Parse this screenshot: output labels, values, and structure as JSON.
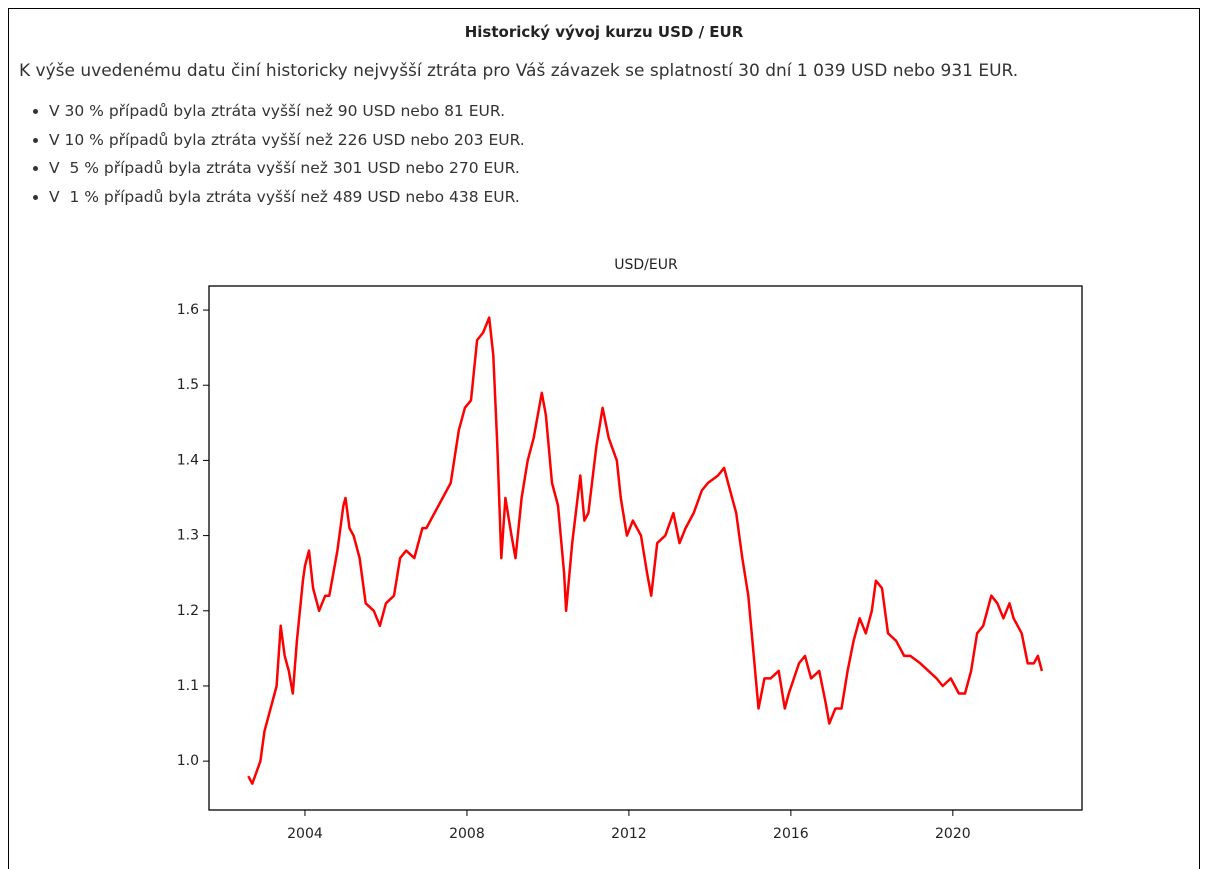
{
  "header": {
    "title": "Historický vývoj kurzu USD / EUR"
  },
  "intro": "K výše uvedenému datu činí historicky nejvyšší ztráta pro Váš závazek se splatností 30 dní 1 039 USD nebo 931 EUR.",
  "bullets": [
    "V 30 % případů byla ztráta vyšší než 90 USD nebo 81 EUR.",
    "V 10 % případů byla ztráta vyšší než 226 USD nebo 203 EUR.",
    "V  5 % případů byla ztráta vyšší než 301 USD nebo 270 EUR.",
    "V  1 % případů byla ztráta vyšší než 489 USD nebo 438 EUR."
  ],
  "chart_data": {
    "type": "line",
    "title": "USD/EUR",
    "color": "#ff0000",
    "x": [
      2002.6,
      2002.7,
      2002.9,
      2003.0,
      2003.2,
      2003.3,
      2003.4,
      2003.5,
      2003.6,
      2003.7,
      2003.8,
      2003.95,
      2004.0,
      2004.1,
      2004.2,
      2004.35,
      2004.5,
      2004.6,
      2004.8,
      2004.95,
      2005.0,
      2005.1,
      2005.2,
      2005.35,
      2005.5,
      2005.7,
      2005.85,
      2006.0,
      2006.2,
      2006.35,
      2006.5,
      2006.7,
      2006.9,
      2007.0,
      2007.2,
      2007.4,
      2007.6,
      2007.8,
      2007.95,
      2008.1,
      2008.25,
      2008.4,
      2008.55,
      2008.65,
      2008.75,
      2008.85,
      2008.95,
      2009.1,
      2009.2,
      2009.35,
      2009.5,
      2009.65,
      2009.85,
      2009.95,
      2010.1,
      2010.25,
      2010.4,
      2010.45,
      2010.6,
      2010.8,
      2010.9,
      2011.0,
      2011.2,
      2011.35,
      2011.5,
      2011.7,
      2011.8,
      2011.95,
      2012.1,
      2012.3,
      2012.45,
      2012.55,
      2012.7,
      2012.9,
      2013.1,
      2013.25,
      2013.4,
      2013.6,
      2013.8,
      2013.95,
      2014.2,
      2014.35,
      2014.5,
      2014.65,
      2014.8,
      2014.95,
      2015.05,
      2015.2,
      2015.35,
      2015.5,
      2015.7,
      2015.85,
      2015.95,
      2016.2,
      2016.35,
      2016.5,
      2016.7,
      2016.85,
      2016.95,
      2017.1,
      2017.25,
      2017.4,
      2017.55,
      2017.7,
      2017.85,
      2018.0,
      2018.1,
      2018.25,
      2018.4,
      2018.6,
      2018.8,
      2018.95,
      2019.2,
      2019.4,
      2019.6,
      2019.75,
      2019.95,
      2020.15,
      2020.3,
      2020.45,
      2020.6,
      2020.75,
      2020.95,
      2021.1,
      2021.25,
      2021.4,
      2021.5,
      2021.7,
      2021.85,
      2022.0,
      2022.1,
      2022.2
    ],
    "values": [
      0.98,
      0.97,
      1.0,
      1.04,
      1.08,
      1.1,
      1.18,
      1.14,
      1.12,
      1.09,
      1.16,
      1.24,
      1.26,
      1.28,
      1.23,
      1.2,
      1.22,
      1.22,
      1.28,
      1.34,
      1.35,
      1.31,
      1.3,
      1.27,
      1.21,
      1.2,
      1.18,
      1.21,
      1.22,
      1.27,
      1.28,
      1.27,
      1.31,
      1.31,
      1.33,
      1.35,
      1.37,
      1.44,
      1.47,
      1.48,
      1.56,
      1.57,
      1.59,
      1.54,
      1.42,
      1.27,
      1.35,
      1.3,
      1.27,
      1.35,
      1.4,
      1.43,
      1.49,
      1.46,
      1.37,
      1.34,
      1.25,
      1.2,
      1.29,
      1.38,
      1.32,
      1.33,
      1.42,
      1.47,
      1.43,
      1.4,
      1.35,
      1.3,
      1.32,
      1.3,
      1.25,
      1.22,
      1.29,
      1.3,
      1.33,
      1.29,
      1.31,
      1.33,
      1.36,
      1.37,
      1.38,
      1.39,
      1.36,
      1.33,
      1.27,
      1.22,
      1.16,
      1.07,
      1.11,
      1.11,
      1.12,
      1.07,
      1.09,
      1.13,
      1.14,
      1.11,
      1.12,
      1.08,
      1.05,
      1.07,
      1.07,
      1.12,
      1.16,
      1.19,
      1.17,
      1.2,
      1.24,
      1.23,
      1.17,
      1.16,
      1.14,
      1.14,
      1.13,
      1.12,
      1.11,
      1.1,
      1.11,
      1.09,
      1.09,
      1.12,
      1.17,
      1.18,
      1.22,
      1.21,
      1.19,
      1.21,
      1.19,
      1.17,
      1.13,
      1.13,
      1.14,
      1.12
    ],
    "xlim": [
      2001.63,
      2023.19
    ],
    "ylim": [
      0.935,
      1.632
    ],
    "xticks": [
      2004,
      2008,
      2012,
      2016,
      2020
    ],
    "yticks": [
      {
        "value": 1,
        "label": "1.0"
      },
      1.1,
      1.2,
      1.3,
      1.4,
      1.5,
      1.6
    ]
  }
}
